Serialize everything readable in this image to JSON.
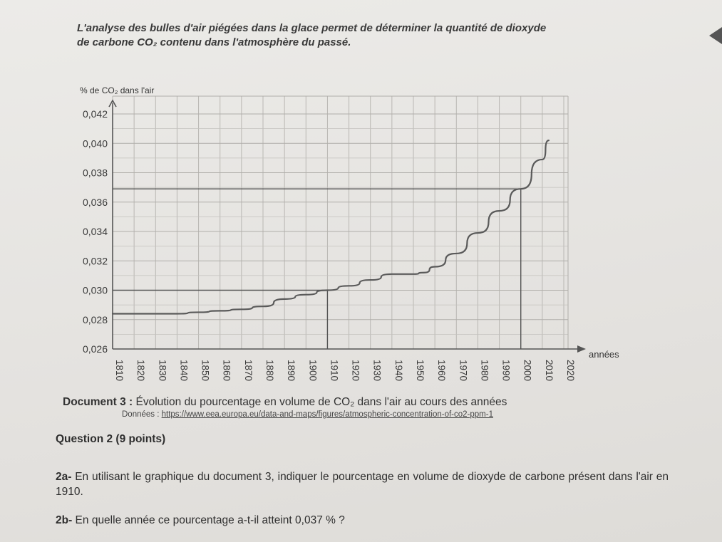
{
  "intro": {
    "line1": "L'analyse des bulles d'air piégées dans la glace permet de déterminer la quantité de dioxyde",
    "line2_prefix": "de carbone ",
    "line2_co2": "CO₂",
    "line2_suffix": " contenu dans l'atmosphère du passé."
  },
  "chart_data": {
    "type": "line",
    "ylabel_prefix": "% de ",
    "ylabel_co2": "CO₂",
    "ylabel_suffix": " dans l'air",
    "xlabel": "années",
    "yticks": [
      "0,026",
      "0,028",
      "0,030",
      "0,032",
      "0,034",
      "0,036",
      "0,038",
      "0,040",
      "0,042"
    ],
    "ytick_values": [
      0.026,
      0.028,
      0.03,
      0.032,
      0.034,
      0.036,
      0.038,
      0.04,
      0.042
    ],
    "xticks": [
      1810,
      1820,
      1830,
      1840,
      1850,
      1860,
      1870,
      1880,
      1890,
      1900,
      1910,
      1920,
      1930,
      1940,
      1950,
      1960,
      1970,
      1980,
      1990,
      2000,
      2010,
      2020
    ],
    "xlim": [
      1810,
      2020
    ],
    "ylim": [
      0.026,
      0.042
    ],
    "grid": true,
    "series": [
      {
        "x": [
          1810,
          1820,
          1830,
          1840,
          1850,
          1860,
          1870,
          1880,
          1890,
          1900,
          1910,
          1920,
          1930,
          1940,
          1950,
          1955,
          1960,
          1970,
          1980,
          1990,
          2000,
          2010,
          2013
        ],
        "values": [
          0.0284,
          0.0284,
          0.0284,
          0.0284,
          0.0285,
          0.0286,
          0.0287,
          0.0289,
          0.0294,
          0.0297,
          0.03,
          0.0303,
          0.0307,
          0.0311,
          0.0311,
          0.0312,
          0.0316,
          0.0325,
          0.0339,
          0.0354,
          0.0369,
          0.0389,
          0.0402
        ]
      }
    ],
    "reference_lines": [
      {
        "x": 1910,
        "y": 0.03
      },
      {
        "x": 2000,
        "y": 0.0369
      }
    ]
  },
  "caption": {
    "label": "Document 3 :",
    "text_before": " Évolution du pourcentage en volume de ",
    "co2": "CO₂",
    "text_after": " dans l'air au cours des années"
  },
  "source": {
    "prefix": "Données : ",
    "url": "https://www.eea.europa.eu/data-and-maps/figures/atmospheric-concentration-of-co2-ppm-1"
  },
  "question": {
    "title": "Question 2 (9 points)",
    "q2a_num": "2a-",
    "q2a_text": " En utilisant le graphique du document 3, indiquer le pourcentage en volume de dioxyde de carbone présent dans l'air en 1910.",
    "q2b_num": "2b-",
    "q2b_text": " En quelle année ce pourcentage a-t-il atteint 0,037 % ?"
  }
}
